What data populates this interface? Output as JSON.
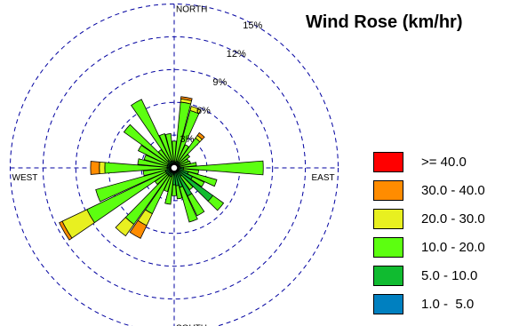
{
  "chart_data": {
    "type": "wind-rose",
    "title": "Wind Rose (km/hr)",
    "directions_label": [
      "NORTH",
      "EAST",
      "SOUTH",
      "WEST"
    ],
    "rings": [
      {
        "value": 3,
        "label": "3%"
      },
      {
        "value": 6,
        "label": "6%"
      },
      {
        "value": 9,
        "label": "9%"
      },
      {
        "value": 12,
        "label": "12%"
      },
      {
        "value": 15,
        "label": "15%"
      }
    ],
    "legend": [
      {
        "label": ">= 40.0",
        "color": "#ff0000"
      },
      {
        "label": "30.0 - 40.0",
        "color": "#ff8c00"
      },
      {
        "label": "20.0 - 30.0",
        "color": "#e8f020"
      },
      {
        "label": "10.0 - 20.0",
        "color": "#5cff10"
      },
      {
        "label": "5.0 - 10.0",
        "color": "#10bb30"
      },
      {
        "label": "1.0 -  5.0",
        "color": "#0080c0"
      }
    ],
    "sector_width_deg": 10,
    "series_order": [
      "1.0-5.0",
      "5.0-10.0",
      "10.0-20.0",
      "20.0-30.0",
      "30.0-40.0",
      ">=40.0"
    ],
    "sectors": [
      {
        "dir": 0,
        "values": [
          0,
          0.1,
          2.0,
          0,
          0,
          0
        ]
      },
      {
        "dir": 10,
        "values": [
          0,
          0.2,
          5.5,
          0.3,
          0.2,
          0
        ]
      },
      {
        "dir": 20,
        "values": [
          0,
          0.3,
          4.8,
          0.4,
          0,
          0
        ]
      },
      {
        "dir": 30,
        "values": [
          0,
          0.3,
          1.7,
          0,
          0,
          0
        ]
      },
      {
        "dir": 40,
        "values": [
          0,
          0.3,
          2.7,
          0.3,
          0.3,
          0
        ]
      },
      {
        "dir": 50,
        "values": [
          0,
          0.3,
          1.1,
          0,
          0,
          0
        ]
      },
      {
        "dir": 60,
        "values": [
          0,
          0.2,
          0.9,
          0,
          0,
          0
        ]
      },
      {
        "dir": 70,
        "values": [
          0,
          0.2,
          1.0,
          0,
          0,
          0
        ]
      },
      {
        "dir": 80,
        "values": [
          0,
          0.2,
          1.5,
          0,
          0,
          0
        ]
      },
      {
        "dir": 90,
        "values": [
          0,
          0.5,
          7.3,
          0,
          0,
          0
        ]
      },
      {
        "dir": 100,
        "values": [
          0,
          0.5,
          1.4,
          0,
          0,
          0
        ]
      },
      {
        "dir": 110,
        "values": [
          0,
          1.0,
          2.7,
          0,
          0,
          0
        ]
      },
      {
        "dir": 120,
        "values": [
          0,
          1.5,
          1.2,
          0,
          0,
          0
        ]
      },
      {
        "dir": 130,
        "values": [
          0,
          4.0,
          1.2,
          0,
          0,
          0
        ]
      },
      {
        "dir": 140,
        "values": [
          0,
          0.6,
          1.5,
          0,
          0,
          0
        ]
      },
      {
        "dir": 150,
        "values": [
          0,
          2.5,
          2.0,
          0,
          0,
          0
        ]
      },
      {
        "dir": 160,
        "values": [
          0,
          1.5,
          3.3,
          0,
          0,
          0
        ]
      },
      {
        "dir": 170,
        "values": [
          0,
          1.3,
          1.2,
          0,
          0,
          0
        ]
      },
      {
        "dir": 180,
        "values": [
          0,
          1.2,
          1.0,
          0,
          0,
          0
        ]
      },
      {
        "dir": 190,
        "values": [
          0,
          0.3,
          2.7,
          0,
          0,
          0
        ]
      },
      {
        "dir": 200,
        "values": [
          0,
          0.5,
          1.4,
          0,
          0,
          0
        ]
      },
      {
        "dir": 210,
        "values": [
          0,
          0.5,
          3.8,
          1.2,
          1.3,
          0
        ]
      },
      {
        "dir": 220,
        "values": [
          0,
          0.5,
          5.5,
          1.3,
          0,
          0
        ]
      },
      {
        "dir": 230,
        "values": [
          0,
          0.5,
          1.3,
          0,
          0,
          0
        ]
      },
      {
        "dir": 240,
        "values": [
          0,
          0.5,
          8.0,
          2.5,
          0.3,
          0
        ]
      },
      {
        "dir": 250,
        "values": [
          0,
          0.5,
          6.6,
          0,
          0,
          0
        ]
      },
      {
        "dir": 260,
        "values": [
          0,
          0.3,
          2.2,
          0,
          0,
          0
        ]
      },
      {
        "dir": 270,
        "values": [
          0,
          0.3,
          5.7,
          0.5,
          0.8,
          0
        ]
      },
      {
        "dir": 280,
        "values": [
          0,
          0.3,
          2.7,
          0,
          0,
          0
        ]
      },
      {
        "dir": 290,
        "values": [
          0,
          0.3,
          2.2,
          0,
          0,
          0
        ]
      },
      {
        "dir": 300,
        "values": [
          0,
          0.3,
          3.0,
          0,
          0,
          0
        ]
      },
      {
        "dir": 310,
        "values": [
          0,
          0.3,
          5.0,
          0,
          0,
          0
        ]
      },
      {
        "dir": 320,
        "values": [
          0,
          0.5,
          1.2,
          0,
          0,
          0
        ]
      },
      {
        "dir": 330,
        "values": [
          0,
          0.3,
          6.3,
          0,
          0,
          0
        ]
      },
      {
        "dir": 340,
        "values": [
          0,
          0.3,
          2.6,
          0,
          0,
          0
        ]
      },
      {
        "dir": 350,
        "values": [
          0,
          0.3,
          2.5,
          0,
          0,
          0
        ]
      }
    ]
  }
}
